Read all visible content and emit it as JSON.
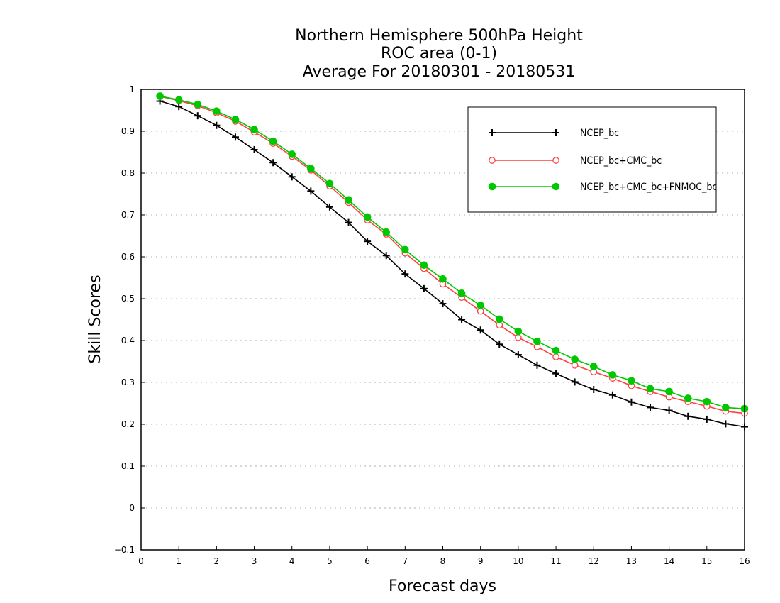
{
  "chart_data": {
    "type": "line",
    "title_lines": [
      "Northern Hemisphere 500hPa Height",
      "ROC area (0-1)",
      "Average For 20180301 - 20180531"
    ],
    "xlabel": "Forecast days",
    "ylabel": "Skill Scores",
    "xlim": [
      0,
      16
    ],
    "ylim": [
      -0.1,
      1
    ],
    "x_ticks": [
      "0",
      "1",
      "2",
      "3",
      "4",
      "5",
      "6",
      "7",
      "8",
      "9",
      "10",
      "11",
      "12",
      "13",
      "14",
      "15",
      "16"
    ],
    "y_ticks": [
      "−0.1",
      "0",
      "0.1",
      "0.2",
      "0.3",
      "0.4",
      "0.5",
      "0.6",
      "0.7",
      "0.8",
      "0.9",
      "1"
    ],
    "grid": "horizontal dotted",
    "legend_position": "top-right",
    "x": [
      0.5,
      1,
      1.5,
      2,
      2.5,
      3,
      3.5,
      4,
      4.5,
      5,
      5.5,
      6,
      6.5,
      7,
      7.5,
      8,
      8.5,
      9,
      9.5,
      10,
      10.5,
      11,
      11.5,
      12,
      12.5,
      13,
      13.5,
      14,
      14.5,
      15,
      15.5,
      16
    ],
    "series": [
      {
        "name": "NCEP_bc",
        "color": "#000000",
        "marker": "plus",
        "values": [
          0.972,
          0.959,
          0.937,
          0.914,
          0.886,
          0.856,
          0.825,
          0.791,
          0.757,
          0.719,
          0.682,
          0.637,
          0.603,
          0.559,
          0.524,
          0.488,
          0.45,
          0.425,
          0.391,
          0.366,
          0.341,
          0.321,
          0.301,
          0.283,
          0.27,
          0.253,
          0.24,
          0.233,
          0.219,
          0.212,
          0.201,
          0.194
        ]
      },
      {
        "name": "NCEP_bc+CMC_bc",
        "color": "#ff4040",
        "marker": "open-circle",
        "values": [
          0.983,
          0.973,
          0.961,
          0.944,
          0.924,
          0.898,
          0.871,
          0.84,
          0.807,
          0.769,
          0.73,
          0.688,
          0.654,
          0.609,
          0.572,
          0.535,
          0.503,
          0.47,
          0.437,
          0.407,
          0.385,
          0.361,
          0.341,
          0.325,
          0.31,
          0.292,
          0.278,
          0.265,
          0.254,
          0.243,
          0.231,
          0.226
        ]
      },
      {
        "name": "NCEP_bc+CMC_bc+FNMOC_bc",
        "color": "#00c800",
        "marker": "filled-circle",
        "values": [
          0.984,
          0.975,
          0.964,
          0.948,
          0.928,
          0.904,
          0.876,
          0.845,
          0.811,
          0.775,
          0.736,
          0.695,
          0.659,
          0.617,
          0.58,
          0.547,
          0.513,
          0.484,
          0.451,
          0.422,
          0.398,
          0.376,
          0.355,
          0.338,
          0.318,
          0.304,
          0.285,
          0.278,
          0.262,
          0.254,
          0.24,
          0.237
        ]
      }
    ]
  }
}
